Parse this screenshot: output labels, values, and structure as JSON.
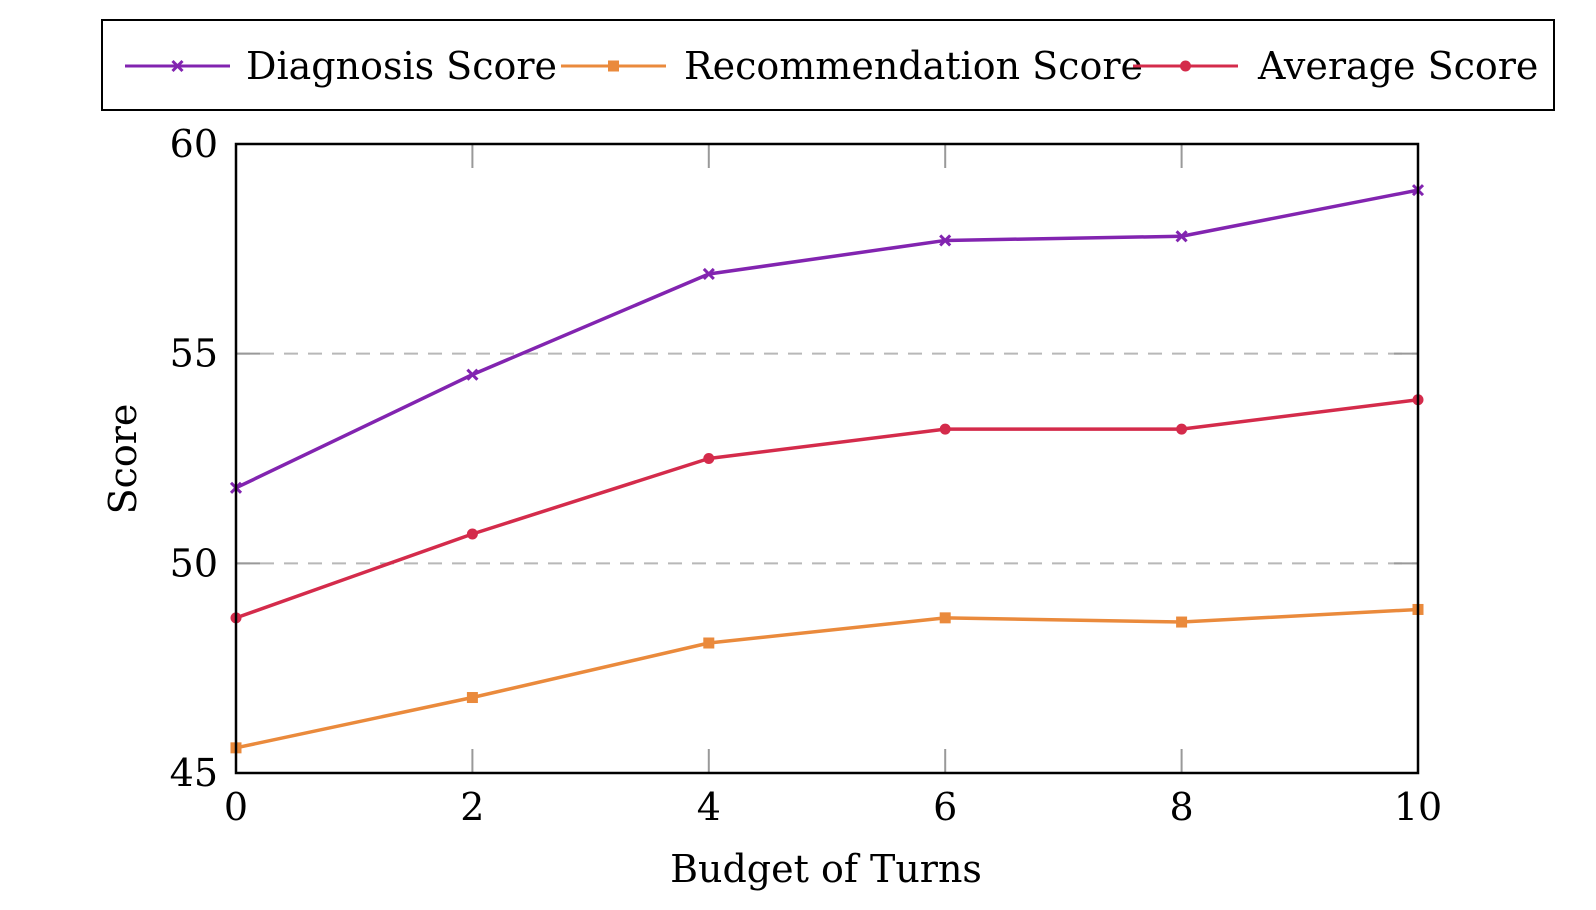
{
  "chart_data": {
    "type": "line",
    "title": "",
    "xlabel": "Budget of Turns",
    "ylabel": "Score",
    "x": [
      0,
      2,
      4,
      6,
      8,
      10
    ],
    "xlim": [
      0,
      10
    ],
    "ylim": [
      45,
      60
    ],
    "xticks": [
      "0",
      "2",
      "4",
      "6",
      "8",
      "10"
    ],
    "yticks": [
      "45",
      "50",
      "55",
      "60"
    ],
    "grid": "horizontal dashed",
    "legend_position": "top",
    "series": [
      {
        "name": "Diagnosis Score",
        "color": "#8224b0",
        "marker": "x",
        "values": [
          51.8,
          54.5,
          56.9,
          57.7,
          57.8,
          58.9
        ]
      },
      {
        "name": "Recommendation Score",
        "color": "#ea8a3c",
        "marker": "square",
        "values": [
          45.6,
          46.8,
          48.1,
          48.7,
          48.6,
          48.9
        ]
      },
      {
        "name": "Average Score",
        "color": "#d42b4b",
        "marker": "circle",
        "values": [
          48.7,
          50.7,
          52.5,
          53.2,
          53.2,
          53.9
        ]
      }
    ]
  }
}
